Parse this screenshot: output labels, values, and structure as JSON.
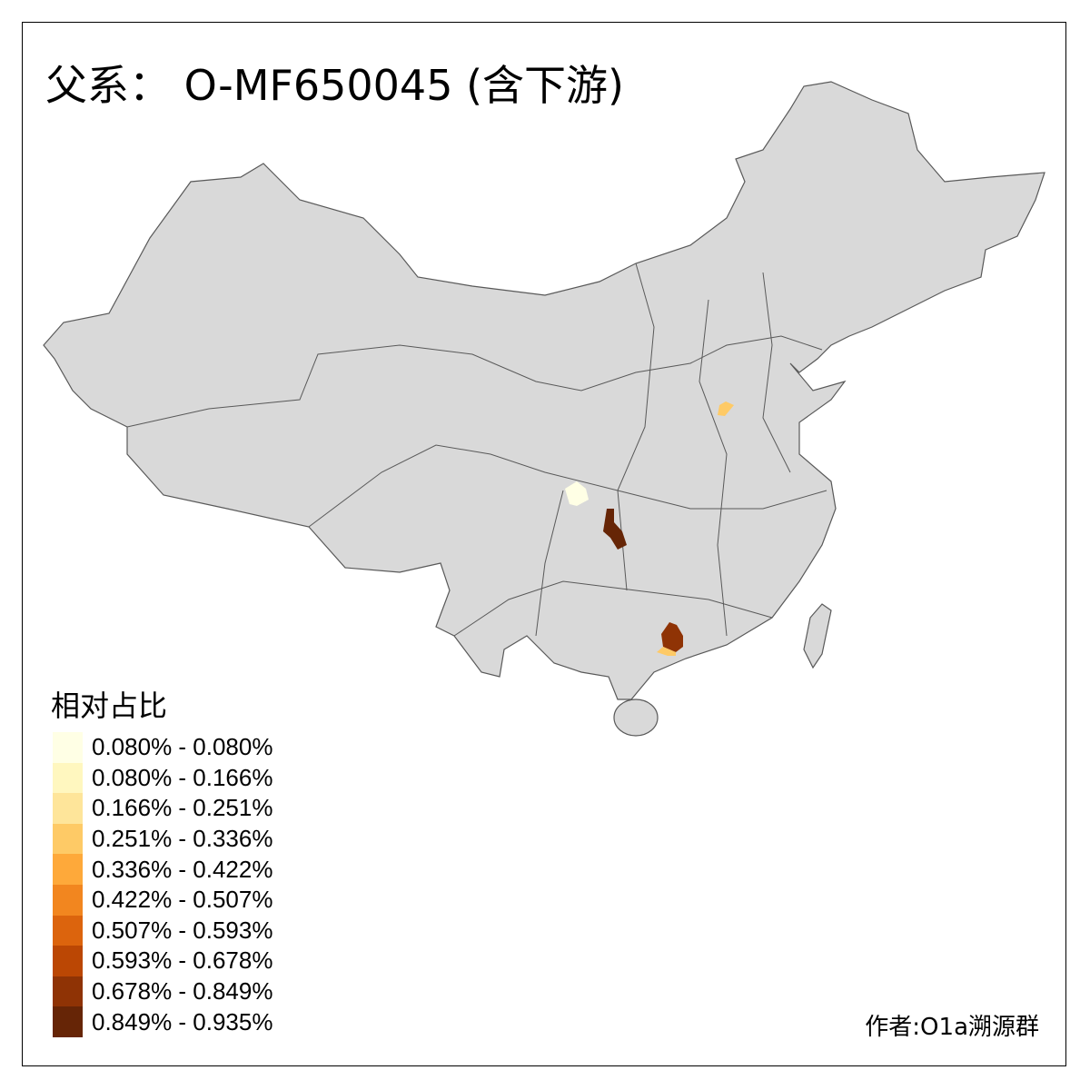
{
  "title": "父系： O-MF650045 (含下游)",
  "legend": {
    "title": "相对占比",
    "items": [
      {
        "label": "0.080% - 0.080%",
        "color": "#FFFFE5"
      },
      {
        "label": "0.080% - 0.166%",
        "color": "#FFF7BF"
      },
      {
        "label": "0.166% - 0.251%",
        "color": "#FEE59A"
      },
      {
        "label": "0.251% - 0.336%",
        "color": "#FECA66"
      },
      {
        "label": "0.336% - 0.422%",
        "color": "#FEA93A"
      },
      {
        "label": "0.422% - 0.507%",
        "color": "#F2861F"
      },
      {
        "label": "0.507% - 0.593%",
        "color": "#DC640D"
      },
      {
        "label": "0.593% - 0.678%",
        "color": "#BB4704"
      },
      {
        "label": "0.678% - 0.849%",
        "color": "#8F3305"
      },
      {
        "label": "0.849% - 0.935%",
        "color": "#662506"
      }
    ]
  },
  "map": {
    "base_fill": "#D9D9D9",
    "border_color": "#595959",
    "shaded_regions": [
      {
        "area": "Sichuan (central)",
        "class": 0
      },
      {
        "area": "Chongqing/Guizhou border",
        "class": 9
      },
      {
        "area": "Guangxi (east)",
        "class": 8
      },
      {
        "area": "Guangxi (east, south part)",
        "class": 3
      },
      {
        "area": "Shandong/Hebei border",
        "class": 3
      }
    ]
  },
  "credit": "作者:O1a溯源群"
}
